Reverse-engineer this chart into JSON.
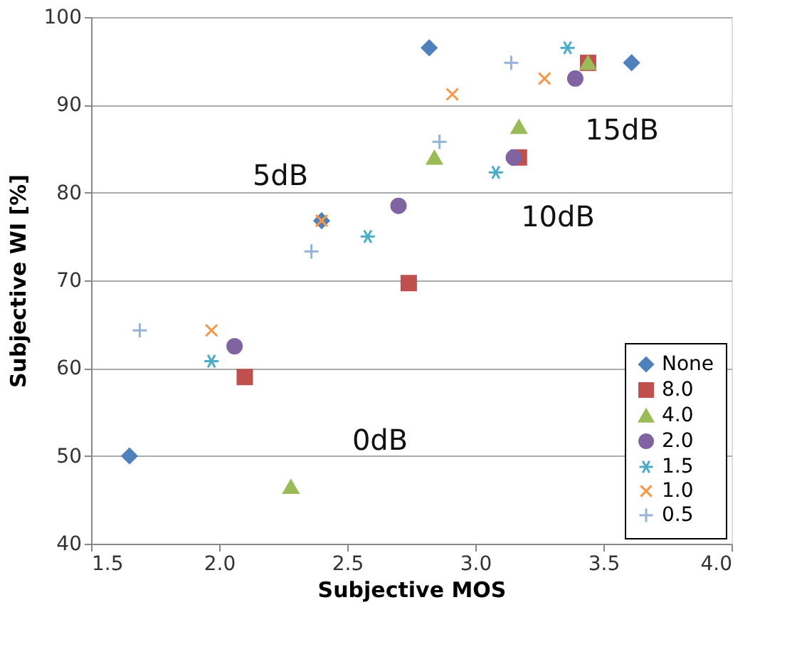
{
  "chart_data": {
    "type": "scatter",
    "xlabel": "Subjective MOS",
    "ylabel": "Subjective WI [%]",
    "xlim": [
      1.5,
      4.0
    ],
    "xticks": [
      1.5,
      {
        "value": 2,
        "label": "2.0"
      },
      2.5,
      {
        "value": 3,
        "label": "3.0"
      },
      3.5,
      {
        "value": 4,
        "label": "4.0"
      }
    ],
    "ylim": [
      40,
      100
    ],
    "yticks": [
      40,
      50,
      60,
      70,
      80,
      90,
      100
    ],
    "grid": "y",
    "legend": "bottom right",
    "series": [
      {
        "name": "None",
        "color": "#4f81bd",
        "marker": "diamond",
        "x": [
          1.65,
          2.4,
          2.82,
          3.61
        ],
        "values": [
          50,
          76.8,
          96.5,
          94.8
        ]
      },
      {
        "name": "8.0",
        "color": "#c0504d",
        "marker": "square",
        "x": [
          2.1,
          2.74,
          3.17,
          3.44
        ],
        "values": [
          59,
          69.7,
          84,
          94.8
        ]
      },
      {
        "name": "4.0",
        "color": "#9bbb59",
        "marker": "triangle",
        "x": [
          2.28,
          2.84,
          3.17,
          3.44
        ],
        "values": [
          46.5,
          84,
          87.5,
          94.8
        ]
      },
      {
        "name": "2.0",
        "color": "#8064a2",
        "marker": "circle",
        "x": [
          2.06,
          2.7,
          3.15,
          3.39
        ],
        "values": [
          62.5,
          78.5,
          84,
          93
        ]
      },
      {
        "name": "1.5",
        "color": "#4bacc6",
        "marker": "cross",
        "x": [
          1.97,
          2.58,
          3.08,
          3.36
        ],
        "values": [
          60.8,
          75,
          82.3,
          96.5
        ]
      },
      {
        "name": "1.0",
        "color": "#f79646",
        "marker": "x",
        "x": [
          1.97,
          2.4,
          2.91,
          3.27
        ],
        "values": [
          64.3,
          76.8,
          91.2,
          93
        ]
      },
      {
        "name": "0.5",
        "color": "#95b3d7",
        "marker": "plus",
        "x": [
          1.69,
          2.36,
          2.86,
          3.14
        ],
        "values": [
          64.3,
          73.3,
          85.8,
          94.8
        ]
      }
    ],
    "annotations": [
      "0dB",
      "5dB",
      "10dB",
      "15dB"
    ]
  }
}
